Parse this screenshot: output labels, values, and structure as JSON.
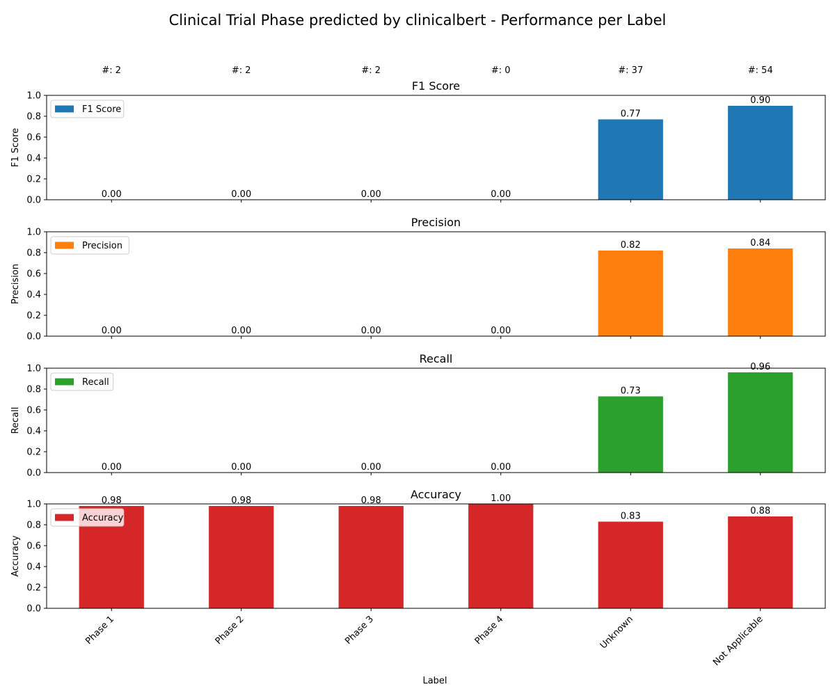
{
  "chart_data": {
    "type": "bar",
    "title": "Clinical Trial Phase predicted by clinicalbert - Performance per Label",
    "xlabel": "Label",
    "categories": [
      "Phase 1",
      "Phase 2",
      "Phase 3",
      "Phase 4",
      "Unknown",
      "Not Applicable"
    ],
    "counts": [
      "#: 2",
      "#: 2",
      "#: 2",
      "#: 0",
      "#: 37",
      "#: 54"
    ],
    "ylim": [
      0,
      1
    ],
    "yticks": [
      "0.0",
      "0.2",
      "0.4",
      "0.6",
      "0.8",
      "1.0"
    ],
    "grid": false,
    "legend_position": "upper-left",
    "panels": [
      {
        "title": "F1 Score",
        "ylabel": "F1 Score",
        "legend": "F1 Score",
        "color": "#1f77b4",
        "values": [
          0.0,
          0.0,
          0.0,
          0.0,
          0.77,
          0.9
        ],
        "labels": [
          "0.00",
          "0.00",
          "0.00",
          "0.00",
          "0.77",
          "0.90"
        ]
      },
      {
        "title": "Precision",
        "ylabel": "Precision",
        "legend": "Precision",
        "color": "#ff7f0e",
        "values": [
          0.0,
          0.0,
          0.0,
          0.0,
          0.82,
          0.84
        ],
        "labels": [
          "0.00",
          "0.00",
          "0.00",
          "0.00",
          "0.82",
          "0.84"
        ]
      },
      {
        "title": "Recall",
        "ylabel": "Recall",
        "legend": "Recall",
        "color": "#2ca02c",
        "values": [
          0.0,
          0.0,
          0.0,
          0.0,
          0.73,
          0.96
        ],
        "labels": [
          "0.00",
          "0.00",
          "0.00",
          "0.00",
          "0.73",
          "0.96"
        ]
      },
      {
        "title": "Accuracy",
        "ylabel": "Accuracy",
        "legend": "Accuracy",
        "color": "#d62728",
        "values": [
          0.98,
          0.98,
          0.98,
          1.0,
          0.83,
          0.88
        ],
        "labels": [
          "0.98",
          "0.98",
          "0.98",
          "1.00",
          "0.83",
          "0.88"
        ]
      }
    ]
  }
}
